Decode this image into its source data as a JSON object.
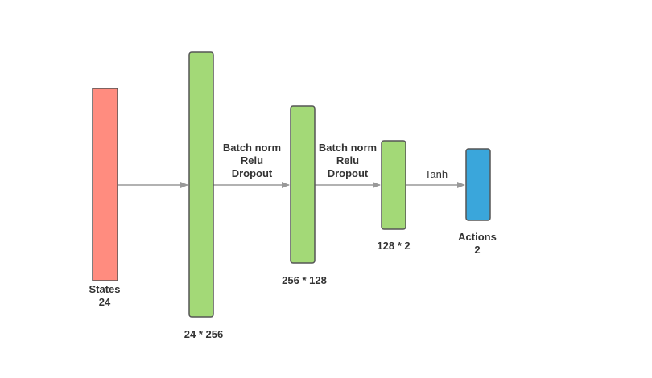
{
  "colors": {
    "input": "#ff8c7f",
    "hidden": "#a3d977",
    "output": "#3aa6db",
    "arrow": "#999999",
    "block_stroke": "#555555"
  },
  "blocks": [
    {
      "id": "states",
      "kind": "input",
      "label_line1": "States",
      "label_line2": "24"
    },
    {
      "id": "layer1",
      "kind": "hidden",
      "label": "24 * 256"
    },
    {
      "id": "layer2",
      "kind": "hidden",
      "label": "256 * 128"
    },
    {
      "id": "layer3",
      "kind": "hidden",
      "label": "128 * 2"
    },
    {
      "id": "actions",
      "kind": "output",
      "label_line1": "Actions",
      "label_line2": "2"
    }
  ],
  "connections": [
    {
      "from": "states",
      "to": "layer1",
      "ops": []
    },
    {
      "from": "layer1",
      "to": "layer2",
      "ops": [
        "Batch norm",
        "Relu",
        "Dropout"
      ]
    },
    {
      "from": "layer2",
      "to": "layer3",
      "ops": [
        "Batch norm",
        "Relu",
        "Dropout"
      ]
    },
    {
      "from": "layer3",
      "to": "actions",
      "ops": [
        "Tanh"
      ]
    }
  ]
}
